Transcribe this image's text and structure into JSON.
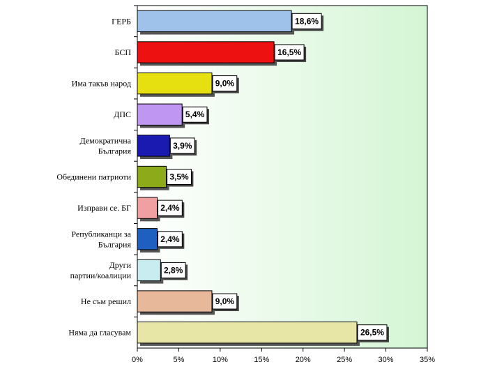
{
  "chart_data": {
    "type": "bar",
    "orientation": "horizontal",
    "categories": [
      "ГЕРБ",
      "БСП",
      "Има такъв народ",
      "ДПС",
      "Демократична България",
      "Обединени патриоти",
      "Изправи се. БГ",
      "Републиканци за България",
      "Други партии/коалиции",
      "Не съм решил",
      "Няма да гласувам"
    ],
    "category_lines": [
      [
        "ГЕРБ"
      ],
      [
        "БСП"
      ],
      [
        "Има такъв народ"
      ],
      [
        "ДПС"
      ],
      [
        "Демократична",
        "България"
      ],
      [
        "Обединени патриоти"
      ],
      [
        "Изправи се. БГ"
      ],
      [
        "Републиканци за",
        "България"
      ],
      [
        "Други",
        "партии/коалиции"
      ],
      [
        "Не съм решил"
      ],
      [
        "Няма да гласувам"
      ]
    ],
    "values": [
      18.6,
      16.5,
      9.0,
      5.4,
      3.9,
      3.5,
      2.4,
      2.4,
      2.8,
      9.0,
      26.5
    ],
    "value_labels": [
      "18,6%",
      "16,5%",
      "9,0%",
      "5,4%",
      "3,9%",
      "3,5%",
      "2,4%",
      "2,4%",
      "2,8%",
      "9,0%",
      "26,5%"
    ],
    "colors": [
      "#9fc2ea",
      "#ee1111",
      "#e6e010",
      "#bf96f2",
      "#1a1ab0",
      "#8caa1a",
      "#f0a0a0",
      "#1f5fbf",
      "#c9ecf0",
      "#e8b89a",
      "#e8e6a6"
    ],
    "xlim": [
      0,
      35
    ],
    "xticks": [
      0,
      5,
      10,
      15,
      20,
      25,
      30,
      35
    ],
    "xtick_labels": [
      "0%",
      "5%",
      "10%",
      "15%",
      "20%",
      "25%",
      "30%",
      "35%"
    ],
    "plot_background": [
      "#ffffff",
      "#d4f5d4"
    ],
    "grid": false,
    "legend": "none",
    "title": "",
    "xlabel": "",
    "ylabel": ""
  }
}
